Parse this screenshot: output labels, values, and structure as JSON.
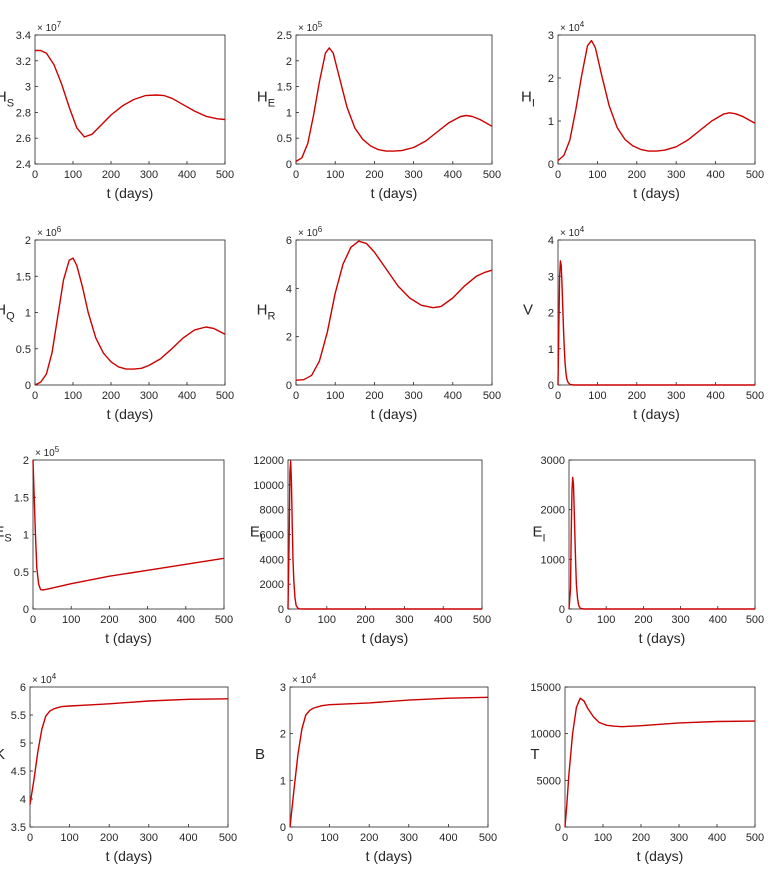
{
  "line_color": "#cc0000",
  "axis_color": "#262626",
  "chart_data": [
    {
      "type": "line",
      "ylabel": "H",
      "ylabel_sub": "S",
      "xlabel": "t (days)",
      "multiplier_base": "× 10",
      "multiplier_exp": "7",
      "xlim": [
        0,
        500
      ],
      "ylim": [
        2.4,
        3.4
      ],
      "xticks": [
        0,
        100,
        200,
        300,
        400,
        500
      ],
      "yticks": [
        2.4,
        2.6,
        2.8,
        3,
        3.2,
        3.4
      ],
      "ytick_labels": [
        "2.4",
        "2.6",
        "2.8",
        "3",
        "3.2",
        "3.4"
      ],
      "x": [
        0,
        15,
        30,
        50,
        70,
        90,
        110,
        130,
        150,
        170,
        200,
        230,
        260,
        290,
        320,
        340,
        360,
        390,
        420,
        450,
        480,
        500
      ],
      "y": [
        3.28,
        3.28,
        3.26,
        3.17,
        3.02,
        2.84,
        2.68,
        2.61,
        2.63,
        2.69,
        2.78,
        2.85,
        2.9,
        2.93,
        2.935,
        2.93,
        2.91,
        2.86,
        2.81,
        2.77,
        2.75,
        2.745
      ]
    },
    {
      "type": "line",
      "ylabel": "H",
      "ylabel_sub": "E",
      "xlabel": "t (days)",
      "multiplier_base": "× 10",
      "multiplier_exp": "5",
      "xlim": [
        0,
        500
      ],
      "ylim": [
        0,
        2.5
      ],
      "xticks": [
        0,
        100,
        200,
        300,
        400,
        500
      ],
      "yticks": [
        0,
        0.5,
        1,
        1.5,
        2,
        2.5
      ],
      "ytick_labels": [
        "0",
        "0.5",
        "1",
        "1.5",
        "2",
        "2.5"
      ],
      "x": [
        0,
        15,
        30,
        45,
        60,
        75,
        85,
        95,
        110,
        130,
        150,
        170,
        190,
        210,
        230,
        250,
        270,
        300,
        330,
        360,
        390,
        420,
        435,
        450,
        470,
        500
      ],
      "y": [
        0.05,
        0.12,
        0.4,
        0.95,
        1.6,
        2.15,
        2.25,
        2.15,
        1.7,
        1.1,
        0.7,
        0.48,
        0.35,
        0.28,
        0.25,
        0.25,
        0.26,
        0.32,
        0.44,
        0.62,
        0.8,
        0.92,
        0.94,
        0.92,
        0.86,
        0.73
      ]
    },
    {
      "type": "line",
      "ylabel": "H",
      "ylabel_sub": "I",
      "xlabel": "t (days)",
      "multiplier_base": "× 10",
      "multiplier_exp": "4",
      "xlim": [
        0,
        500
      ],
      "ylim": [
        0,
        3
      ],
      "xticks": [
        0,
        100,
        200,
        300,
        400,
        500
      ],
      "yticks": [
        0,
        1,
        2,
        3
      ],
      "ytick_labels": [
        "0",
        "1",
        "2",
        "3"
      ],
      "x": [
        0,
        15,
        30,
        45,
        60,
        75,
        85,
        95,
        110,
        130,
        150,
        170,
        190,
        210,
        230,
        250,
        270,
        300,
        330,
        360,
        390,
        420,
        435,
        450,
        470,
        500
      ],
      "y": [
        0.08,
        0.2,
        0.55,
        1.25,
        2.05,
        2.75,
        2.87,
        2.7,
        2.1,
        1.35,
        0.85,
        0.57,
        0.42,
        0.34,
        0.3,
        0.3,
        0.32,
        0.4,
        0.56,
        0.78,
        1.0,
        1.16,
        1.19,
        1.17,
        1.1,
        0.95
      ]
    },
    {
      "type": "line",
      "ylabel": "H",
      "ylabel_sub": "Q",
      "xlabel": "t (days)",
      "multiplier_base": "× 10",
      "multiplier_exp": "6",
      "xlim": [
        0,
        500
      ],
      "ylim": [
        0,
        2
      ],
      "xticks": [
        0,
        100,
        200,
        300,
        400,
        500
      ],
      "yticks": [
        0,
        0.5,
        1,
        1.5,
        2
      ],
      "ytick_labels": [
        "0",
        "0.5",
        "1",
        "1.5",
        "2"
      ],
      "x": [
        0,
        15,
        30,
        45,
        60,
        75,
        90,
        100,
        110,
        125,
        140,
        160,
        180,
        200,
        220,
        240,
        260,
        280,
        300,
        330,
        360,
        390,
        420,
        450,
        470,
        500
      ],
      "y": [
        0,
        0.04,
        0.15,
        0.45,
        0.95,
        1.45,
        1.72,
        1.75,
        1.65,
        1.35,
        1.0,
        0.65,
        0.44,
        0.32,
        0.25,
        0.22,
        0.22,
        0.23,
        0.27,
        0.36,
        0.5,
        0.65,
        0.76,
        0.8,
        0.78,
        0.7
      ]
    },
    {
      "type": "line",
      "ylabel": "H",
      "ylabel_sub": "R",
      "xlabel": "t (days)",
      "multiplier_base": "× 10",
      "multiplier_exp": "6",
      "xlim": [
        0,
        500
      ],
      "ylim": [
        0,
        6
      ],
      "xticks": [
        0,
        100,
        200,
        300,
        400,
        500
      ],
      "yticks": [
        0,
        2,
        4,
        6
      ],
      "ytick_labels": [
        "0",
        "2",
        "4",
        "6"
      ],
      "x": [
        0,
        20,
        40,
        60,
        80,
        100,
        120,
        140,
        160,
        180,
        200,
        230,
        260,
        290,
        320,
        350,
        370,
        400,
        430,
        460,
        480,
        500
      ],
      "y": [
        0.2,
        0.22,
        0.4,
        1.0,
        2.2,
        3.8,
        5.0,
        5.7,
        5.95,
        5.85,
        5.5,
        4.8,
        4.1,
        3.6,
        3.3,
        3.2,
        3.25,
        3.6,
        4.1,
        4.5,
        4.65,
        4.75
      ]
    },
    {
      "type": "line",
      "ylabel": "V",
      "ylabel_sub": "",
      "xlabel": "t (days)",
      "multiplier_base": "× 10",
      "multiplier_exp": "4",
      "xlim": [
        0,
        500
      ],
      "ylim": [
        0,
        4
      ],
      "xticks": [
        0,
        100,
        200,
        300,
        400,
        500
      ],
      "yticks": [
        0,
        1,
        2,
        3,
        4
      ],
      "ytick_labels": [
        "0",
        "1",
        "2",
        "3",
        "4"
      ],
      "x": [
        0,
        2,
        4,
        6,
        8,
        10,
        12,
        14,
        16,
        18,
        20,
        22,
        25,
        30,
        40,
        60,
        500
      ],
      "y": [
        0,
        1.5,
        3.0,
        3.42,
        3.3,
        2.85,
        2.2,
        1.55,
        1.0,
        0.6,
        0.35,
        0.18,
        0.08,
        0.02,
        0,
        0,
        0
      ]
    },
    {
      "type": "line",
      "ylabel": "E",
      "ylabel_sub": "S",
      "xlabel": "t (days)",
      "multiplier_base": "× 10",
      "multiplier_exp": "5",
      "xlim": [
        0,
        500
      ],
      "ylim": [
        0,
        2
      ],
      "xticks": [
        0,
        100,
        200,
        300,
        400,
        500
      ],
      "yticks": [
        0,
        0.5,
        1,
        1.5,
        2
      ],
      "ytick_labels": [
        "0",
        "0.5",
        "1",
        "1.5",
        "2"
      ],
      "x": [
        0,
        3,
        6,
        10,
        15,
        20,
        25,
        35,
        50,
        100,
        200,
        300,
        400,
        500
      ],
      "y": [
        2.0,
        1.55,
        1.05,
        0.55,
        0.33,
        0.26,
        0.255,
        0.265,
        0.28,
        0.34,
        0.44,
        0.52,
        0.6,
        0.68
      ]
    },
    {
      "type": "line",
      "ylabel": "E",
      "ylabel_sub": "L",
      "xlabel": "t (days)",
      "multiplier_base": "",
      "multiplier_exp": "",
      "xlim": [
        0,
        500
      ],
      "ylim": [
        0,
        12000
      ],
      "xticks": [
        0,
        100,
        200,
        300,
        400,
        500
      ],
      "yticks": [
        0,
        2000,
        4000,
        6000,
        8000,
        10000,
        12000
      ],
      "ytick_labels": [
        "0",
        "2000",
        "4000",
        "6000",
        "8000",
        "10000",
        "12000"
      ],
      "x": [
        0,
        3,
        5,
        7,
        9,
        11,
        13,
        15,
        18,
        21,
        25,
        30,
        40,
        500
      ],
      "y": [
        0,
        6000,
        11000,
        11900,
        10000,
        6500,
        4000,
        2300,
        900,
        300,
        80,
        10,
        0,
        0
      ]
    },
    {
      "type": "line",
      "ylabel": "E",
      "ylabel_sub": "I",
      "xlabel": "t (days)",
      "multiplier_base": "",
      "multiplier_exp": "",
      "xlim": [
        0,
        500
      ],
      "ylim": [
        0,
        3000
      ],
      "xticks": [
        0,
        100,
        200,
        300,
        400,
        500
      ],
      "yticks": [
        0,
        1000,
        2000,
        3000
      ],
      "ytick_labels": [
        "0",
        "1000",
        "2000",
        "3000"
      ],
      "x": [
        0,
        4,
        6,
        8,
        10,
        12,
        14,
        16,
        18,
        20,
        23,
        26,
        30,
        40,
        500
      ],
      "y": [
        0,
        400,
        1500,
        2400,
        2650,
        2500,
        2000,
        1400,
        900,
        500,
        200,
        70,
        15,
        0,
        0
      ]
    },
    {
      "type": "line",
      "ylabel": "K",
      "ylabel_sub": "",
      "xlabel": "t (days)",
      "multiplier_base": "× 10",
      "multiplier_exp": "4",
      "xlim": [
        0,
        500
      ],
      "ylim": [
        3.5,
        6
      ],
      "xticks": [
        0,
        100,
        200,
        300,
        400,
        500
      ],
      "yticks": [
        3.5,
        4,
        4.5,
        5,
        5.5,
        6
      ],
      "ytick_labels": [
        "3.5",
        "4",
        "4.5",
        "5",
        "5.5",
        "6"
      ],
      "x": [
        0,
        10,
        20,
        30,
        40,
        50,
        60,
        80,
        100,
        150,
        200,
        300,
        400,
        500
      ],
      "y": [
        3.9,
        4.35,
        4.85,
        5.25,
        5.48,
        5.57,
        5.61,
        5.65,
        5.66,
        5.68,
        5.7,
        5.75,
        5.78,
        5.79
      ]
    },
    {
      "type": "line",
      "ylabel": "B",
      "ylabel_sub": "",
      "xlabel": "t (days)",
      "multiplier_base": "× 10",
      "multiplier_exp": "4",
      "xlim": [
        0,
        500
      ],
      "ylim": [
        0,
        3
      ],
      "xticks": [
        0,
        100,
        200,
        300,
        400,
        500
      ],
      "yticks": [
        0,
        1,
        2,
        3
      ],
      "ytick_labels": [
        "0",
        "1",
        "2",
        "3"
      ],
      "x": [
        0,
        10,
        20,
        30,
        40,
        50,
        60,
        80,
        100,
        150,
        200,
        300,
        400,
        500
      ],
      "y": [
        0,
        0.8,
        1.55,
        2.1,
        2.4,
        2.5,
        2.55,
        2.6,
        2.62,
        2.64,
        2.66,
        2.72,
        2.76,
        2.78
      ]
    },
    {
      "type": "line",
      "ylabel": "T",
      "ylabel_sub": "",
      "xlabel": "t (days)",
      "multiplier_base": "",
      "multiplier_exp": "",
      "xlim": [
        0,
        500
      ],
      "ylim": [
        0,
        15000
      ],
      "xticks": [
        0,
        100,
        200,
        300,
        400,
        500
      ],
      "yticks": [
        0,
        5000,
        10000,
        15000
      ],
      "ytick_labels": [
        "0",
        "5000",
        "10000",
        "15000"
      ],
      "x": [
        0,
        5,
        10,
        20,
        30,
        40,
        50,
        60,
        75,
        90,
        110,
        130,
        150,
        200,
        300,
        400,
        500
      ],
      "y": [
        0,
        2500,
        5500,
        10000,
        12800,
        13800,
        13500,
        12700,
        11800,
        11200,
        10900,
        10800,
        10750,
        10850,
        11150,
        11300,
        11350
      ]
    }
  ]
}
